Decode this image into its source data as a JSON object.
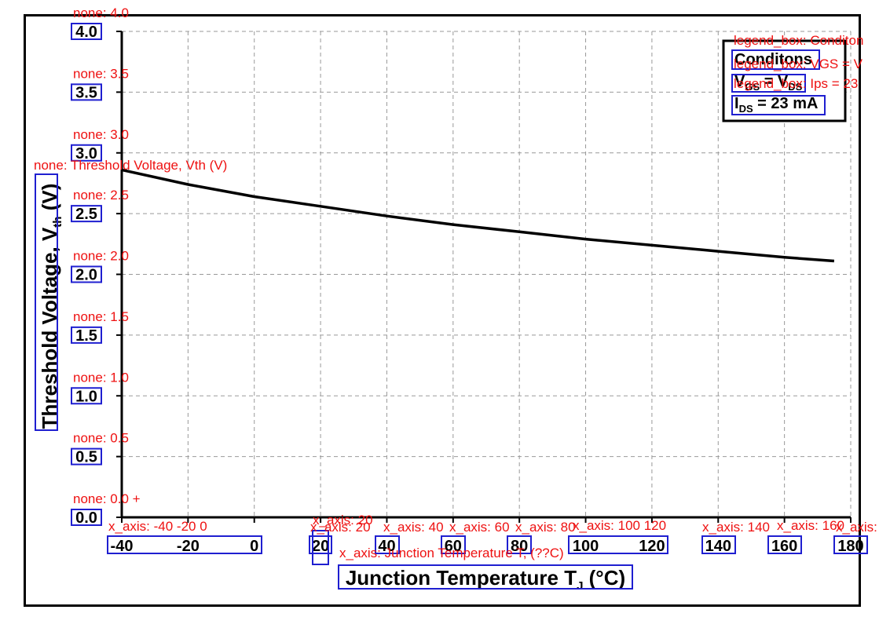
{
  "chart_data": {
    "type": "line",
    "xlabel": "Junction Temperature T",
    "xlabel_sub": "J",
    "xlabel_suffix": " (°C)",
    "ylabel": "Threshold Voltage, V",
    "ylabel_sub": "th",
    "ylabel_suffix": " (V)",
    "xlim": [
      -40,
      180
    ],
    "ylim": [
      0,
      4
    ],
    "x_ticks": [
      "-40",
      "-20",
      "0",
      "20",
      "40",
      "60",
      "80",
      "100",
      "120",
      "140",
      "160",
      "180"
    ],
    "y_ticks": [
      "0.0",
      "0.5",
      "1.0",
      "1.5",
      "2.0",
      "2.5",
      "3.0",
      "3.5",
      "4.0"
    ],
    "grid": true,
    "series": [
      {
        "x": [
          -40,
          -20,
          0,
          20,
          40,
          60,
          80,
          100,
          120,
          140,
          160,
          175
        ],
        "y": [
          2.86,
          2.74,
          2.64,
          2.56,
          2.48,
          2.41,
          2.35,
          2.29,
          2.24,
          2.19,
          2.14,
          2.11
        ],
        "color": "#000000"
      }
    ],
    "legend": {
      "placement": "top-right",
      "title": "Conditons",
      "lines": [
        {
          "text": "V",
          "sub": "GS",
          "text2": " = V",
          "sub2": "DS"
        },
        {
          "text": "I",
          "sub": "DS",
          "text2": " = 23 mA",
          "sub2": ""
        }
      ]
    }
  },
  "annotations": {
    "y_ticks": [
      "none: 0.0 +",
      "none: 0.5",
      "none: 1.0",
      "none: 1.5",
      "none: 2.0",
      "none: 2.5",
      "none: 3.0",
      "none: 3.5",
      "none: 4.0"
    ],
    "y_label": "none: Threshold Voltage, Vth (V)",
    "x_group": "x_axis: -40 -20 0",
    "x_20": "x_axis: 20",
    "x_20b": "x_axis: 20",
    "x_40": "x_axis: 40",
    "x_60": "x_axis: 60",
    "x_80": "x_axis: 80",
    "x_100_120": "x_axis: 100 120",
    "x_140": "x_axis: 140",
    "x_160": "x_axis: 160",
    "x_180": "x_axis:",
    "x_label": "x_axis: Junction Temperature T, (??C)",
    "legend_title": "legend_box: Conditon",
    "legend_vgs": "legend_box: VGS = V",
    "legend_ids": "legend_box: Ips = 23"
  }
}
